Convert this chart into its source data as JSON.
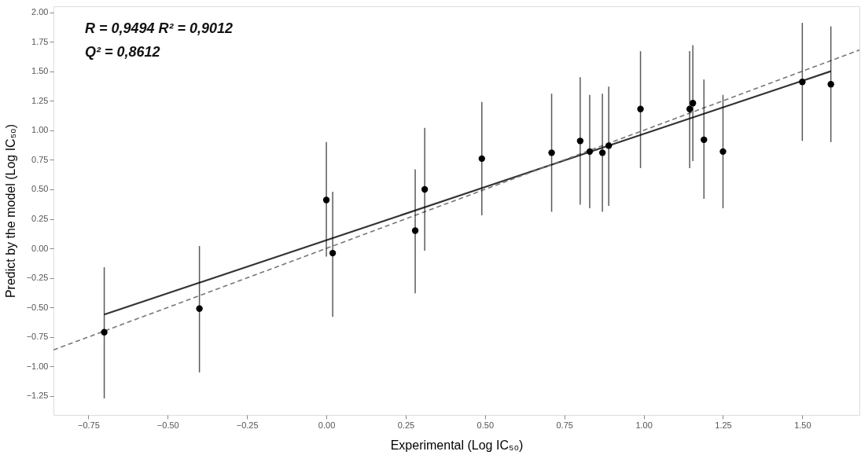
{
  "chart_data": {
    "type": "scatter",
    "xlabel": "Experimental (Log IC₅₀)",
    "ylabel": "Predict by the model (Log IC₅₀)",
    "annotations": [
      "R = 0,9494   R² = 0,9012",
      "Q² = 0,8612"
    ],
    "xlim": [
      -0.86,
      1.68
    ],
    "ylim": [
      -1.41,
      2.05
    ],
    "xticks": [
      {
        "value": -0.75,
        "label": "−0.75"
      },
      {
        "value": -0.5,
        "label": "−0.50"
      },
      {
        "value": -0.25,
        "label": "−0.25"
      },
      {
        "value": 0,
        "label": "0.00"
      },
      {
        "value": 0.25,
        "label": "0.25"
      },
      {
        "value": 0.5,
        "label": "0.50"
      },
      {
        "value": 0.75,
        "label": "0.75"
      },
      {
        "value": 1,
        "label": "1.00"
      },
      {
        "value": 1.25,
        "label": "1.25"
      },
      {
        "value": 1.5,
        "label": "1.50"
      }
    ],
    "yticks": [
      {
        "value": -1.25,
        "label": "−1.25"
      },
      {
        "value": -1,
        "label": "−1.00"
      },
      {
        "value": -0.75,
        "label": "−0.75"
      },
      {
        "value": -0.5,
        "label": "−0.50"
      },
      {
        "value": -0.25,
        "label": "−0.25"
      },
      {
        "value": 0,
        "label": "0.00"
      },
      {
        "value": 0.25,
        "label": "0.25"
      },
      {
        "value": 0.5,
        "label": "0.50"
      },
      {
        "value": 0.75,
        "label": "0.75"
      },
      {
        "value": 1,
        "label": "1.00"
      },
      {
        "value": 1.25,
        "label": "1.25"
      },
      {
        "value": 1.5,
        "label": "1.50"
      },
      {
        "value": 1.75,
        "label": "1.75"
      },
      {
        "value": 2,
        "label": "2.00"
      }
    ],
    "series": [
      {
        "marker": "circle",
        "color": "#000000",
        "x": [
          -0.7,
          -0.4,
          0.0,
          0.02,
          0.28,
          0.31,
          0.49,
          0.71,
          0.8,
          0.83,
          0.87,
          0.89,
          0.99,
          1.145,
          1.155,
          1.19,
          1.25,
          1.5,
          1.59
        ],
        "values": [
          -0.71,
          -0.51,
          0.41,
          -0.04,
          0.15,
          0.5,
          0.76,
          0.81,
          0.91,
          0.82,
          0.81,
          0.87,
          1.18,
          1.18,
          1.23,
          0.92,
          0.82,
          1.41,
          1.39
        ],
        "errors": [
          [
            -1.27,
            -0.16
          ],
          [
            -1.05,
            0.02
          ],
          [
            -0.07,
            0.9
          ],
          [
            -0.58,
            0.48
          ],
          [
            -0.38,
            0.67
          ],
          [
            -0.02,
            1.02
          ],
          [
            0.28,
            1.24
          ],
          [
            0.31,
            1.31
          ],
          [
            0.37,
            1.45
          ],
          [
            0.34,
            1.3
          ],
          [
            0.31,
            1.31
          ],
          [
            0.36,
            1.37
          ],
          [
            0.68,
            1.67
          ],
          [
            0.68,
            1.67
          ],
          [
            0.74,
            1.72
          ],
          [
            0.42,
            1.43
          ],
          [
            0.34,
            1.3
          ],
          [
            0.91,
            1.91
          ],
          [
            0.9,
            1.88
          ]
        ]
      },
      {
        "type": "line",
        "color": "#333333",
        "line_style": "solid",
        "x": [
          -0.7,
          1.59
        ],
        "values": [
          -0.56,
          1.5
        ]
      },
      {
        "type": "line",
        "color": "#777777",
        "line_style": "dashed",
        "x": [
          -0.86,
          1.68
        ],
        "values": [
          -0.86,
          1.68
        ]
      }
    ]
  }
}
